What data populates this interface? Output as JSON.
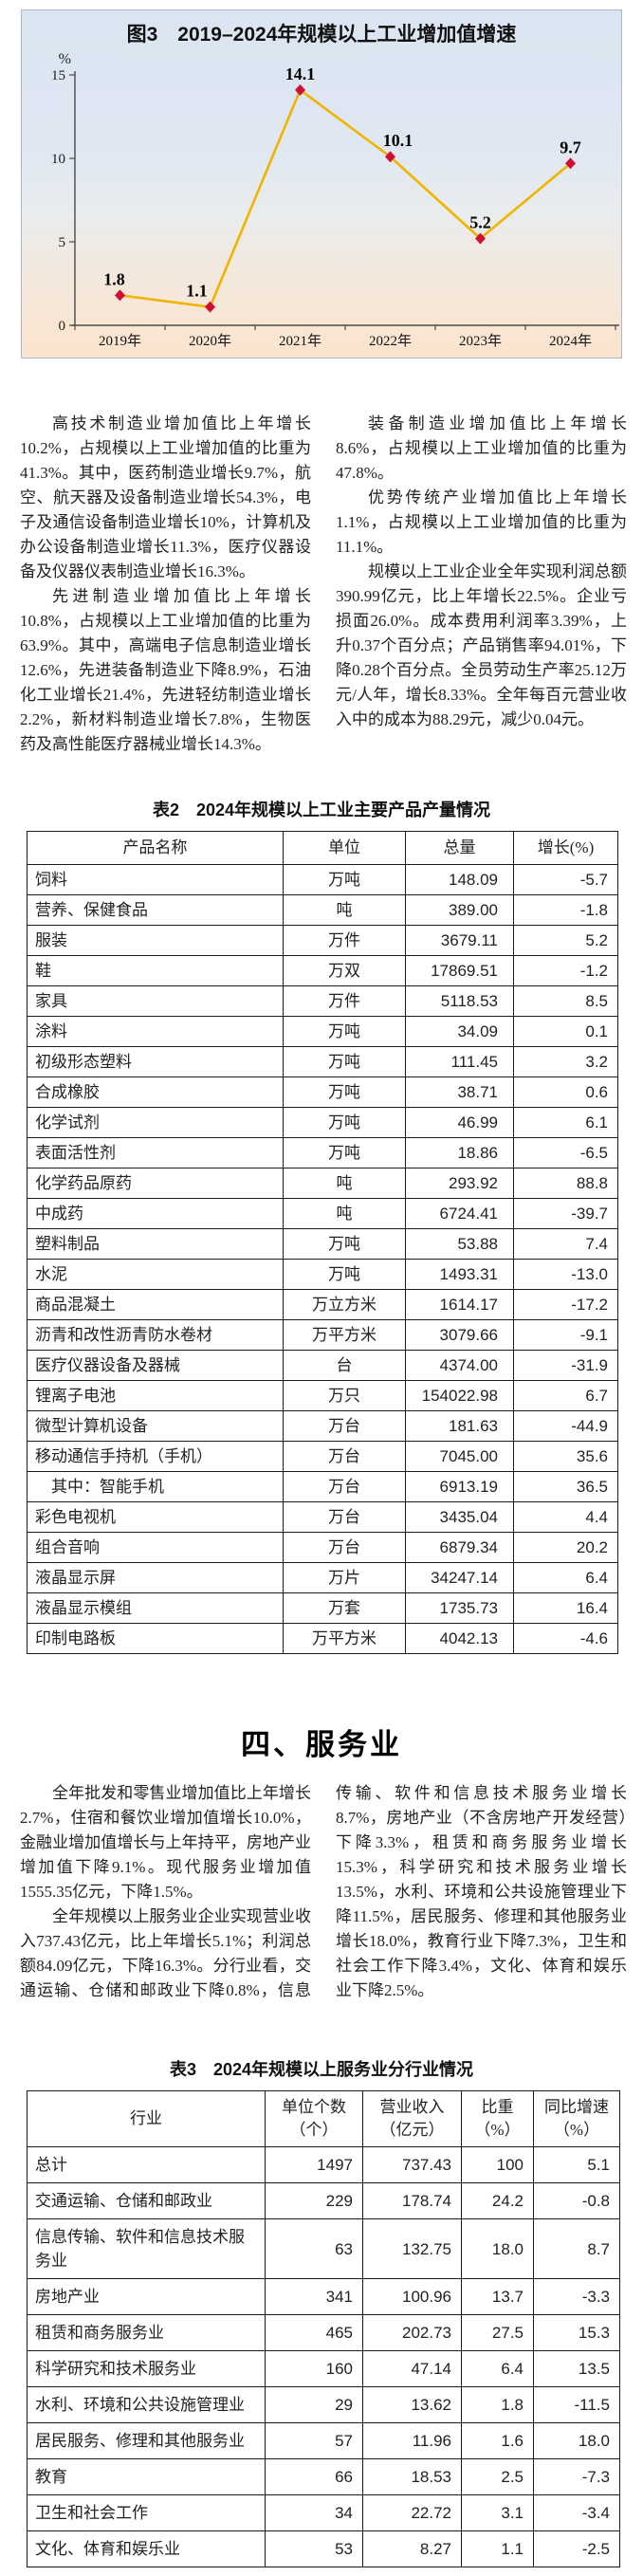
{
  "figure": {
    "title": "图3　2019–2024年规模以上工业增加值增速",
    "chart_data": {
      "type": "line",
      "title": "图3　2019–2024年规模以上工业增加值增速",
      "categories": [
        "2019年",
        "2020年",
        "2021年",
        "2022年",
        "2023年",
        "2024年"
      ],
      "values": [
        1.8,
        1.1,
        14.1,
        10.1,
        5.2,
        9.7
      ],
      "unit_label": "%",
      "ylim": [
        0,
        15
      ],
      "yticks": [
        0,
        5,
        10,
        15
      ],
      "grid": "off",
      "legend": "none",
      "line_color": "#f0b400",
      "marker_color": "#cf1034"
    }
  },
  "industry_text": {
    "p1": "高技术制造业增加值比上年增长10.2%，占规模以上工业增加值的比重为41.3%。其中，医药制造业增长9.7%，航空、航天器及设备制造业增长54.3%，电子及通信设备制造业增长10%，计算机及办公设备制造业增长11.3%，医疗仪器设备及仪器仪表制造业增长16.3%。",
    "p2": "先进制造业增加值比上年增长10.8%，占规模以上工业增加值的比重为63.9%。其中，高端电子信息制造业增长12.6%，先进装备制造业下降8.9%，石油化工业增长21.4%，先进轻纺制造业增长2.2%，新材料制造业增长7.8%，生物医药及高性能医疗器械业增长14.3%。",
    "p3": "装备制造业增加值比上年增长8.6%，占规模以上工业增加值的比重为47.8%。",
    "p4": "优势传统产业增加值比上年增长1.1%，占规模以上工业增加值的比重为11.1%。",
    "p5": "规模以上工业企业全年实现利润总额390.99亿元，比上年增长22.5%。企业亏损面26.0%。成本费用利润率3.39%，上升0.37个百分点；产品销售率94.01%，下降0.28个百分点。全员劳动生产率25.12万元/人年，增长8.33%。全年每百元营业收入中的成本为88.29元，减少0.04元。"
  },
  "table2": {
    "title": "表2　2024年规模以上工业主要产品产量情况",
    "headers": [
      "产品名称",
      "单位",
      "总量",
      "增长(%)"
    ],
    "rows": [
      [
        "饲料",
        "万吨",
        "148.09",
        "-5.7"
      ],
      [
        "营养、保健食品",
        "吨",
        "389.00",
        "-1.8"
      ],
      [
        "服装",
        "万件",
        "3679.11",
        "5.2"
      ],
      [
        "鞋",
        "万双",
        "17869.51",
        "-1.2"
      ],
      [
        "家具",
        "万件",
        "5118.53",
        "8.5"
      ],
      [
        "涂料",
        "万吨",
        "34.09",
        "0.1"
      ],
      [
        "初级形态塑料",
        "万吨",
        "111.45",
        "3.2"
      ],
      [
        "合成橡胶",
        "万吨",
        "38.71",
        "0.6"
      ],
      [
        "化学试剂",
        "万吨",
        "46.99",
        "6.1"
      ],
      [
        "表面活性剂",
        "万吨",
        "18.86",
        "-6.5"
      ],
      [
        "化学药品原药",
        "吨",
        "293.92",
        "88.8"
      ],
      [
        "中成药",
        "吨",
        "6724.41",
        "-39.7"
      ],
      [
        "塑料制品",
        "万吨",
        "53.88",
        "7.4"
      ],
      [
        "水泥",
        "万吨",
        "1493.31",
        "-13.0"
      ],
      [
        "商品混凝土",
        "万立方米",
        "1614.17",
        "-17.2"
      ],
      [
        "沥青和改性沥青防水卷材",
        "万平方米",
        "3079.66",
        "-9.1"
      ],
      [
        "医疗仪器设备及器械",
        "台",
        "4374.00",
        "-31.9"
      ],
      [
        "锂离子电池",
        "万只",
        "154022.98",
        "6.7"
      ],
      [
        "微型计算机设备",
        "万台",
        "181.63",
        "-44.9"
      ],
      [
        "移动通信手持机（手机）",
        "万台",
        "7045.00",
        "35.6"
      ],
      [
        "　其中：智能手机",
        "万台",
        "6913.19",
        "36.5"
      ],
      [
        "彩色电视机",
        "万台",
        "3435.04",
        "4.4"
      ],
      [
        "组合音响",
        "万台",
        "6879.34",
        "20.2"
      ],
      [
        "液晶显示屏",
        "万片",
        "34247.14",
        "6.4"
      ],
      [
        "液晶显示模组",
        "万套",
        "1735.73",
        "16.4"
      ],
      [
        "印制电路板",
        "万平方米",
        "4042.13",
        "-4.6"
      ]
    ]
  },
  "section": {
    "heading": "四、服务业"
  },
  "services_text": {
    "p1": "全年批发和零售业增加值比上年增长2.7%，住宿和餐饮业增加值增长10.0%，金融业增加值增长与上年持平，房地产业增加值下降9.1%。现代服务业增加值1555.35亿元，下降1.5%。",
    "p2": "全年规模以上服务业企业实现营业收入737.43亿元，比上年增长5.1%；利润总额84.09亿元，下降16.3%。分行业看，交通运输、仓储和邮政业下降0.8%，信息传输、软件和信息技术服务业增长8.7%，房地产业（不含房地产开发经营）下降3.3%，租赁和商务服务业增长15.3%，科学研究和技术服务业增长13.5%，水利、环境和公共设施管理业下降11.5%，居民服务、修理和其他服务业增长18.0%，教育行业下降7.3%，卫生和社会工作下降3.4%，文化、体育和娱乐业下降2.5%。"
  },
  "table3": {
    "title": "表3　2024年规模以上服务业分行业情况",
    "headers": [
      "行业",
      "单位个数（个）",
      "营业收入（亿元）",
      "比重（%）",
      "同比增速（%）"
    ],
    "rows": [
      [
        "总计",
        "1497",
        "737.43",
        "100",
        "5.1"
      ],
      [
        "交通运输、仓储和邮政业",
        "229",
        "178.74",
        "24.2",
        "-0.8"
      ],
      [
        "信息传输、软件和信息技术服务业",
        "63",
        "132.75",
        "18.0",
        "8.7"
      ],
      [
        "房地产业",
        "341",
        "100.96",
        "13.7",
        "-3.3"
      ],
      [
        "租赁和商务服务业",
        "465",
        "202.73",
        "27.5",
        "15.3"
      ],
      [
        "科学研究和技术服务业",
        "160",
        "47.14",
        "6.4",
        "13.5"
      ],
      [
        "水利、环境和公共设施管理业",
        "29",
        "13.62",
        "1.8",
        "-11.5"
      ],
      [
        "居民服务、修理和其他服务业",
        "57",
        "11.96",
        "1.6",
        "18.0"
      ],
      [
        "教育",
        "66",
        "18.53",
        "2.5",
        "-7.3"
      ],
      [
        "卫生和社会工作",
        "34",
        "22.72",
        "3.1",
        "-3.4"
      ],
      [
        "文化、体育和娱乐业",
        "53",
        "8.27",
        "1.1",
        "-2.5"
      ]
    ]
  }
}
